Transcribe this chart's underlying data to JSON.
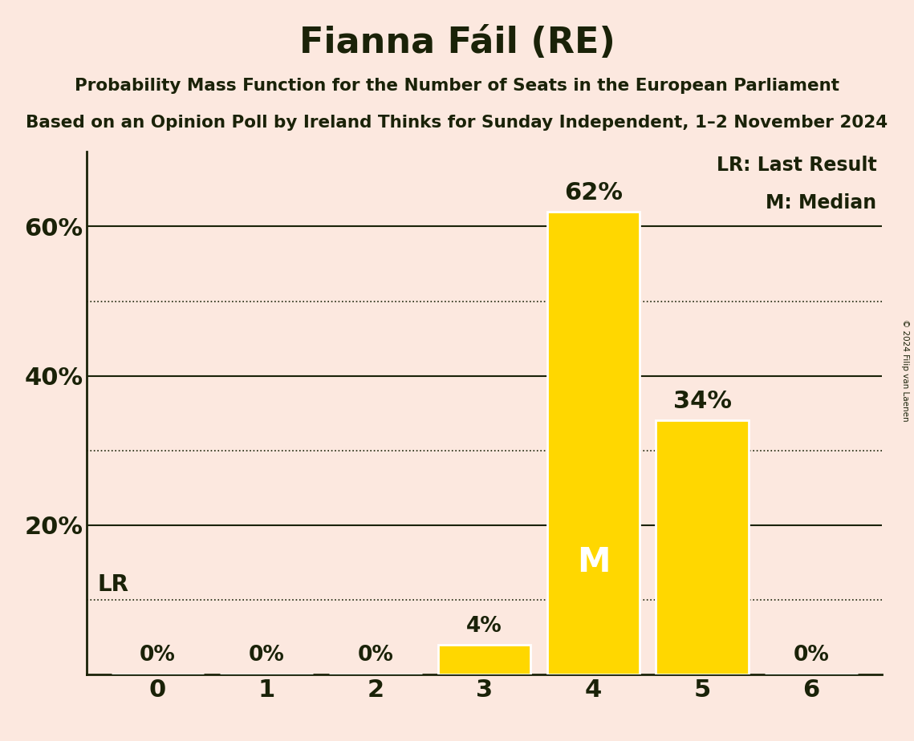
{
  "title": "Fianna Fáil (RE)",
  "subtitle1": "Probability Mass Function for the Number of Seats in the European Parliament",
  "subtitle2": "Based on an Opinion Poll by Ireland Thinks for Sunday Independent, 1–2 November 2024",
  "copyright": "© 2024 Filip van Laenen",
  "categories": [
    0,
    1,
    2,
    3,
    4,
    5,
    6
  ],
  "values": [
    0,
    0,
    0,
    4,
    62,
    34,
    0
  ],
  "bar_color": "#FFD700",
  "background_color": "#fce8df",
  "bar_edge_color": "#ffffff",
  "median_seat": 4,
  "last_result_value": 10,
  "ylim": [
    0,
    70
  ],
  "solid_grid_levels": [
    20,
    40,
    60
  ],
  "dotted_grid_levels": [
    10,
    30,
    50
  ],
  "legend_lr_text": "LR: Last Result",
  "legend_m_text": "M: Median",
  "font_color": "#1a2208"
}
